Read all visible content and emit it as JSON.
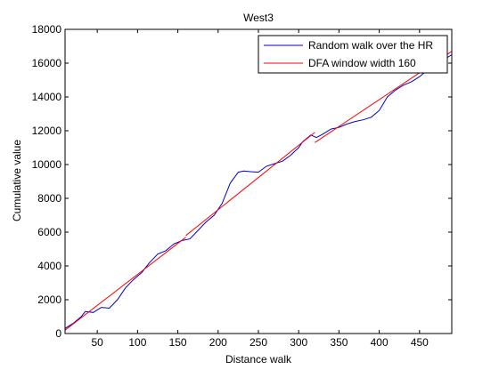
{
  "chart_data": {
    "type": "line",
    "title": "West3",
    "xlabel": "Distance walk",
    "ylabel": "Cumulative value",
    "xlim": [
      10,
      490
    ],
    "ylim": [
      0,
      18000
    ],
    "xticks": [
      50,
      100,
      150,
      200,
      250,
      300,
      350,
      400,
      450
    ],
    "yticks": [
      0,
      2000,
      4000,
      6000,
      8000,
      10000,
      12000,
      14000,
      16000,
      18000
    ],
    "grid": false,
    "legend_position": "top-right",
    "series": [
      {
        "name": "Random walk over the HR",
        "color": "#0000cc",
        "x": [
          10,
          20,
          30,
          35,
          45,
          55,
          65,
          75,
          85,
          95,
          105,
          115,
          125,
          135,
          145,
          155,
          165,
          175,
          185,
          195,
          205,
          215,
          225,
          232,
          240,
          250,
          260,
          270,
          280,
          290,
          300,
          305,
          315,
          322,
          330,
          340,
          350,
          360,
          370,
          380,
          390,
          400,
          410,
          420,
          430,
          440,
          450,
          460,
          470,
          480,
          490
        ],
        "y": [
          300,
          600,
          1000,
          1300,
          1250,
          1550,
          1500,
          2000,
          2700,
          3200,
          3600,
          4200,
          4700,
          4900,
          5300,
          5500,
          5600,
          6100,
          6600,
          7000,
          7700,
          8900,
          9550,
          9620,
          9580,
          9550,
          9900,
          10050,
          10200,
          10550,
          11000,
          11350,
          11750,
          11600,
          11800,
          12100,
          12200,
          12400,
          12550,
          12650,
          12800,
          13200,
          14000,
          14400,
          14700,
          14900,
          15200,
          15600,
          15900,
          16200,
          16500
        ]
      },
      {
        "name": "DFA window width 160",
        "color": "#ff0000",
        "segments": [
          {
            "x": [
              10,
              160
            ],
            "y": [
              200,
              5700
            ]
          },
          {
            "x": [
              160,
              320
            ],
            "y": [
              5800,
              11900
            ]
          },
          {
            "x": [
              320,
              490
            ],
            "y": [
              11300,
              16700
            ]
          }
        ]
      }
    ]
  }
}
